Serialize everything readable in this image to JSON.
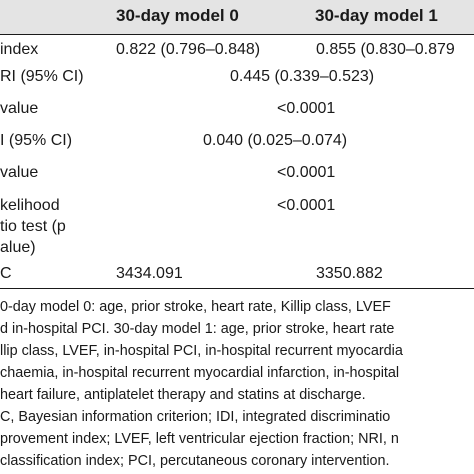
{
  "table": {
    "headers": [
      "30-day model 0",
      "30-day model 1"
    ],
    "rows": [
      {
        "label": "index",
        "m0": "0.822 (0.796–0.848)",
        "m1": "0.855 (0.830–0.879"
      },
      {
        "label": "RI (95% CI)",
        "span": "0.445 (0.339–0.523)"
      },
      {
        "label": "value",
        "span": "<0.0001"
      },
      {
        "label": "I (95% CI)",
        "span": "0.040 (0.025–0.074)"
      },
      {
        "label": "value",
        "span": "<0.0001"
      },
      {
        "label_lines": [
          "kelihood",
          "tio test (p",
          "alue)"
        ],
        "span": "<0.0001"
      },
      {
        "label": "C",
        "m0": "3434.091",
        "m1": "3350.882"
      }
    ]
  },
  "footnote": {
    "lines": [
      "0-day model 0: age, prior stroke, heart rate, Killip class, LVEF",
      "d in-hospital PCI. 30-day model 1: age, prior stroke, heart rate",
      "llip class, LVEF, in-hospital PCI, in-hospital recurrent myocardia",
      "chaemia, in-hospital recurrent myocardial infarction, in-hospital",
      "heart failure, antiplatelet therapy and statins at discharge.",
      "C, Bayesian information criterion; IDI, integrated discriminatio",
      "provement index; LVEF, left ventricular ejection fraction; NRI, n",
      "classification index; PCI, percutaneous coronary intervention."
    ]
  }
}
